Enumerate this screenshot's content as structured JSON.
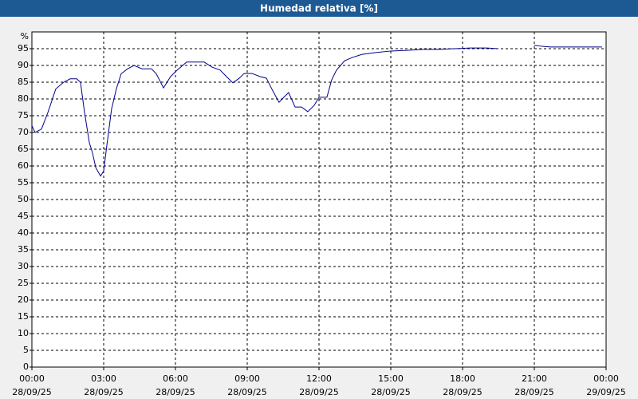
{
  "chart_data": {
    "type": "line",
    "title": "Humedad relativa [%]",
    "y_label": "%",
    "xlim": [
      0,
      24
    ],
    "ylim": [
      0,
      100
    ],
    "grid": true,
    "xticks": [
      {
        "value": 0,
        "label": "00:00\n28/09/25"
      },
      {
        "value": 3,
        "label": "03:00\n28/09/25"
      },
      {
        "value": 6,
        "label": "06:00\n28/09/25"
      },
      {
        "value": 9,
        "label": "09:00\n28/09/25"
      },
      {
        "value": 12,
        "label": "12:00\n28/09/25"
      },
      {
        "value": 15,
        "label": "15:00\n28/09/25"
      },
      {
        "value": 18,
        "label": "18:00\n28/09/25"
      },
      {
        "value": 21,
        "label": "21:00\n28/09/25"
      },
      {
        "value": 24,
        "label": "00:00\n29/09/25"
      }
    ],
    "yticks": [
      0,
      5,
      10,
      15,
      20,
      25,
      30,
      35,
      40,
      45,
      50,
      55,
      60,
      65,
      70,
      75,
      80,
      85,
      90,
      95
    ],
    "series": [
      {
        "color": "#00008b",
        "x": [
          0,
          0.13,
          0.4,
          0.67,
          1.0,
          1.33,
          1.6,
          1.87,
          2.03,
          2.2,
          2.4,
          2.53,
          2.67,
          2.87,
          3.0,
          3.13,
          3.33,
          3.53,
          3.73,
          4.0,
          4.27,
          4.6,
          5.0,
          5.2,
          5.5,
          5.8,
          6.07,
          6.47,
          6.8,
          7.2,
          7.53,
          7.87,
          8.13,
          8.4,
          8.67,
          8.87,
          9.2,
          9.53,
          9.8,
          10.07,
          10.33,
          10.53,
          10.73,
          11.0,
          11.27,
          11.53,
          11.8,
          12.0,
          12.33,
          12.53,
          12.73,
          13.07,
          13.4,
          13.8,
          14.33,
          15.0,
          15.67,
          16.33,
          17.0,
          17.67,
          18.33,
          19.0,
          19.5,
          20.25,
          21.0,
          21.33,
          21.67,
          22.67,
          23.83
        ],
        "values": [
          72,
          70,
          71,
          76,
          83,
          85,
          86,
          86,
          85,
          76,
          67,
          64,
          59.5,
          57,
          58.5,
          66,
          77,
          83,
          87.5,
          89,
          90,
          89,
          89,
          87.5,
          83.3,
          86.7,
          88.6,
          91,
          91,
          91,
          89.5,
          88.6,
          86.7,
          84.8,
          86.2,
          87.6,
          87.6,
          86.7,
          86.2,
          82.4,
          79,
          80.5,
          81.9,
          77.6,
          77.6,
          76.2,
          78.1,
          80.5,
          80.5,
          85.7,
          88.6,
          91.4,
          92.4,
          93.3,
          93.8,
          94.3,
          94.5,
          94.8,
          94.8,
          95,
          95.2,
          95.2,
          95,
          null,
          96,
          95.7,
          95.5,
          95.5,
          95.5
        ]
      }
    ]
  }
}
